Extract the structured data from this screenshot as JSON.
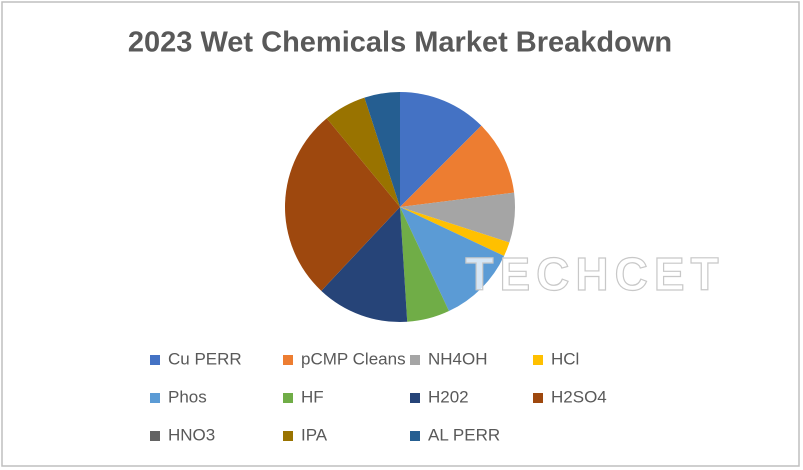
{
  "chart_data": {
    "type": "pie",
    "title": "2023 Wet Chemicals Market Breakdown",
    "watermark": "TECHCET",
    "categories": [
      "Cu PERR",
      "pCMP Cleans",
      "NH4OH",
      "HCl",
      "Phos",
      "HF",
      "H202",
      "H2SO4",
      "HNO3",
      "IPA",
      "AL PERR"
    ],
    "values": [
      12.5,
      10.5,
      7,
      2,
      11,
      6,
      13,
      27,
      0,
      6,
      5
    ],
    "colors": [
      "#4472c4",
      "#ed7d31",
      "#a5a5a5",
      "#ffc000",
      "#5b9bd5",
      "#70ad47",
      "#264478",
      "#9e480e",
      "#636363",
      "#997300",
      "#255e91"
    ],
    "legend": "bottom"
  }
}
